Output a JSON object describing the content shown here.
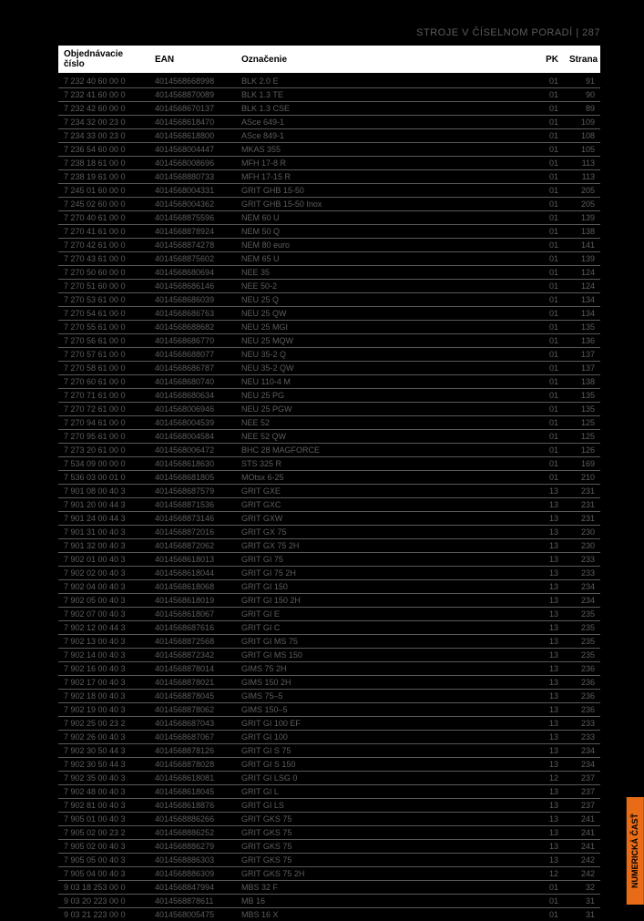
{
  "pageHeader": {
    "text": "STROJE V ČÍSELNOM PORADÍ | 287"
  },
  "sideTab": {
    "text": "NUMERICKÁ ČASŤ"
  },
  "table": {
    "headers": {
      "objednavacie": "Objednávacie číslo",
      "ean": "EAN",
      "oznacenie": "Označenie",
      "pk": "PK",
      "strana": "Strana"
    },
    "rows": [
      {
        "c1": "7 232 40 60 00 0",
        "c2": "4014568668998",
        "c3": "BLK 2.0 E",
        "c4": "01",
        "c5": "91"
      },
      {
        "c1": "7 232 41 60 00 0",
        "c2": "4014568870089",
        "c3": "BLK 1.3 TE",
        "c4": "01",
        "c5": "90"
      },
      {
        "c1": "7 232 42 60 00 0",
        "c2": "4014568670137",
        "c3": "BLK 1.3 CSE",
        "c4": "01",
        "c5": "89"
      },
      {
        "c1": "7 234 32 00 23 0",
        "c2": "4014568618470",
        "c3": "ASce 649-1",
        "c4": "01",
        "c5": "109"
      },
      {
        "c1": "7 234 33 00 23 0",
        "c2": "4014568618800",
        "c3": "ASce 849-1",
        "c4": "01",
        "c5": "108"
      },
      {
        "c1": "7 236 54 60 00 0",
        "c2": "4014568004447",
        "c3": "MKAS 355",
        "c4": "01",
        "c5": "105"
      },
      {
        "c1": "7 238 18 61 00 0",
        "c2": "4014568008696",
        "c3": "MFH 17-8 R",
        "c4": "01",
        "c5": "113"
      },
      {
        "c1": "7 238 19 61 00 0",
        "c2": "4014568880733",
        "c3": "MFH 17-15 R",
        "c4": "01",
        "c5": "113"
      },
      {
        "c1": "7 245 01 60 00 0",
        "c2": "4014568004331",
        "c3": "GRIT GHB 15-50",
        "c4": "01",
        "c5": "205"
      },
      {
        "c1": "7 245 02 60 00 0",
        "c2": "4014568004362",
        "c3": "GRIT GHB 15-50 Inox",
        "c4": "01",
        "c5": "205"
      },
      {
        "c1": "7 270 40 61 00 0",
        "c2": "4014568875596",
        "c3": "NEM 60 U",
        "c4": "01",
        "c5": "139"
      },
      {
        "c1": "7 270 41 61 00 0",
        "c2": "4014568878924",
        "c3": "NEM 50 Q",
        "c4": "01",
        "c5": "138"
      },
      {
        "c1": "7 270 42 61 00 0",
        "c2": "4014568874278",
        "c3": "NEM 80 euro",
        "c4": "01",
        "c5": "141"
      },
      {
        "c1": "7 270 43 61 00 0",
        "c2": "4014568875602",
        "c3": "NEM 65 U",
        "c4": "01",
        "c5": "139"
      },
      {
        "c1": "7 270 50 60 00 0",
        "c2": "4014568680694",
        "c3": "NEE 35",
        "c4": "01",
        "c5": "124"
      },
      {
        "c1": "7 270 51 60 00 0",
        "c2": "4014568686146",
        "c3": "NEE 50-2",
        "c4": "01",
        "c5": "124"
      },
      {
        "c1": "7 270 53 61 00 0",
        "c2": "4014568686039",
        "c3": "NEU 25 Q",
        "c4": "01",
        "c5": "134"
      },
      {
        "c1": "7 270 54 61 00 0",
        "c2": "4014568686763",
        "c3": "NEU 25 QW",
        "c4": "01",
        "c5": "134"
      },
      {
        "c1": "7 270 55 61 00 0",
        "c2": "4014568688682",
        "c3": "NEU 25 MGI",
        "c4": "01",
        "c5": "135"
      },
      {
        "c1": "7 270 56 61 00 0",
        "c2": "4014568686770",
        "c3": "NEU 25 MQW",
        "c4": "01",
        "c5": "136"
      },
      {
        "c1": "7 270 57 61 00 0",
        "c2": "4014568688077",
        "c3": "NEU 35-2 Q",
        "c4": "01",
        "c5": "137"
      },
      {
        "c1": "7 270 58 61 00 0",
        "c2": "4014568686787",
        "c3": "NEU 35-2 QW",
        "c4": "01",
        "c5": "137"
      },
      {
        "c1": "7 270 60 61 00 0",
        "c2": "4014568680740",
        "c3": "NEU 110-4 M",
        "c4": "01",
        "c5": "138"
      },
      {
        "c1": "7 270 71 61 00 0",
        "c2": "4014568680634",
        "c3": "NEU 25 PG",
        "c4": "01",
        "c5": "135"
      },
      {
        "c1": "7 270 72 61 00 0",
        "c2": "4014568006946",
        "c3": "NEU 25 PGW",
        "c4": "01",
        "c5": "135"
      },
      {
        "c1": "7 270 94 61 00 0",
        "c2": "4014568004539",
        "c3": "NEE 52",
        "c4": "01",
        "c5": "125"
      },
      {
        "c1": "7 270 95 61 00 0",
        "c2": "4014568004584",
        "c3": "NEE 52 QW",
        "c4": "01",
        "c5": "125"
      },
      {
        "c1": "7 273 20 61 00 0",
        "c2": "4014568006472",
        "c3": "BHC 28 MAGFORCE",
        "c4": "01",
        "c5": "126"
      },
      {
        "c1": "7 534 09 00 00 0",
        "c2": "4014568618630",
        "c3": "STS 325 R",
        "c4": "01",
        "c5": "169"
      },
      {
        "c1": "7 536 03 00 01 0",
        "c2": "4014568681805",
        "c3": "MOtsx 6-25",
        "c4": "01",
        "c5": "210"
      },
      {
        "c1": "7 901 08 00 40 3",
        "c2": "4014568687579",
        "c3": "GRIT GXE",
        "c4": "13",
        "c5": "231"
      },
      {
        "c1": "7 901 20 00 44 3",
        "c2": "4014568871536",
        "c3": "GRIT GXC",
        "c4": "13",
        "c5": "231"
      },
      {
        "c1": "7 901 24 00 44 3",
        "c2": "4014568873146",
        "c3": "GRIT GXW",
        "c4": "13",
        "c5": "231"
      },
      {
        "c1": "7 901 31 00 40 3",
        "c2": "4014568872016",
        "c3": "GRIT GX 75",
        "c4": "13",
        "c5": "230"
      },
      {
        "c1": "7 901 32 00 40 3",
        "c2": "4014568872062",
        "c3": "GRIT GX 75 2H",
        "c4": "13",
        "c5": "230"
      },
      {
        "c1": "7 902 01 00 40 3",
        "c2": "4014568618013",
        "c3": "GRIT GI 75",
        "c4": "13",
        "c5": "233"
      },
      {
        "c1": "7 902 02 00 40 3",
        "c2": "4014568618044",
        "c3": "GRIT GI 75 2H",
        "c4": "13",
        "c5": "233"
      },
      {
        "c1": "7 902 04 00 40 3",
        "c2": "4014568618068",
        "c3": "GRIT GI 150",
        "c4": "13",
        "c5": "234"
      },
      {
        "c1": "7 902 05 00 40 3",
        "c2": "4014568618019",
        "c3": "GRIT GI 150 2H",
        "c4": "13",
        "c5": "234"
      },
      {
        "c1": "7 902 07 00 40 3",
        "c2": "4014568618067",
        "c3": "GRIT GI E",
        "c4": "13",
        "c5": "235"
      },
      {
        "c1": "7 902 12 00 44 3",
        "c2": "4014568687616",
        "c3": "GRIT GI C",
        "c4": "13",
        "c5": "235"
      },
      {
        "c1": "7 902 13 00 40 3",
        "c2": "4014568872568",
        "c3": "GRIT GI MS 75",
        "c4": "13",
        "c5": "235"
      },
      {
        "c1": "7 902 14 00 40 3",
        "c2": "4014568872342",
        "c3": "GRIT GI MS 150",
        "c4": "13",
        "c5": "235"
      },
      {
        "c1": "7 902 16 00 40 3",
        "c2": "4014568878014",
        "c3": "GIMS 75 2H",
        "c4": "13",
        "c5": "236"
      },
      {
        "c1": "7 902 17 00 40 3",
        "c2": "4014568878021",
        "c3": "GIMS 150 2H",
        "c4": "13",
        "c5": "236"
      },
      {
        "c1": "7 902 18 00 40 3",
        "c2": "4014568878045",
        "c3": "GIMS 75–5",
        "c4": "13",
        "c5": "236"
      },
      {
        "c1": "7 902 19 00 40 3",
        "c2": "4014568878062",
        "c3": "GIMS 150–5",
        "c4": "13",
        "c5": "236"
      },
      {
        "c1": "7 902 25 00 23 2",
        "c2": "4014568687043",
        "c3": "GRIT GI 100 EF",
        "c4": "13",
        "c5": "233"
      },
      {
        "c1": "7 902 26 00 40 3",
        "c2": "4014568687067",
        "c3": "GRIT GI 100",
        "c4": "13",
        "c5": "233"
      },
      {
        "c1": "7 902 30 50 44 3",
        "c2": "4014568878126",
        "c3": "GRIT GI S 75",
        "c4": "13",
        "c5": "234"
      },
      {
        "c1": "7 902 30 50 44 3",
        "c2": "4014568878028",
        "c3": "GRIT GI S 150",
        "c4": "13",
        "c5": "234"
      },
      {
        "c1": "7 902 35 00 40 3",
        "c2": "4014568618081",
        "c3": "GRIT GI LSG 0",
        "c4": "12",
        "c5": "237"
      },
      {
        "c1": "7 902 48 00 40 3",
        "c2": "4014568618045",
        "c3": "GRIT GI L",
        "c4": "13",
        "c5": "237"
      },
      {
        "c1": "7 902 81 00 40 3",
        "c2": "4014568618876",
        "c3": "GRIT GI LS",
        "c4": "13",
        "c5": "237"
      },
      {
        "c1": "7 905 01 00 40 3",
        "c2": "4014568886266",
        "c3": "GRIT GKS 75",
        "c4": "13",
        "c5": "241"
      },
      {
        "c1": "7 905 02 00 23 2",
        "c2": "4014568886252",
        "c3": "GRIT GKS 75",
        "c4": "13",
        "c5": "241"
      },
      {
        "c1": "7 905 02 00 40 3",
        "c2": "4014568886279",
        "c3": "GRIT GKS 75",
        "c4": "13",
        "c5": "241"
      },
      {
        "c1": "7 905 05 00 40 3",
        "c2": "4014568886303",
        "c3": "GRIT GKS 75",
        "c4": "13",
        "c5": "242"
      },
      {
        "c1": "7 905 04 00 40 3",
        "c2": "4014568886309",
        "c3": "GRIT GKS 75 2H",
        "c4": "12",
        "c5": "242"
      },
      {
        "c1": "9 03 18 253 00 0",
        "c2": "4014568847994",
        "c3": "MBS 32 F",
        "c4": "01",
        "c5": "32"
      },
      {
        "c1": "9 03 20 223 00 0",
        "c2": "4014568878611",
        "c3": "MB 16",
        "c4": "01",
        "c5": "31"
      },
      {
        "c1": "9 03 21 223 00 0",
        "c2": "4014568005475",
        "c3": "MBS 16 X",
        "c4": "01",
        "c5": "31"
      }
    ]
  }
}
